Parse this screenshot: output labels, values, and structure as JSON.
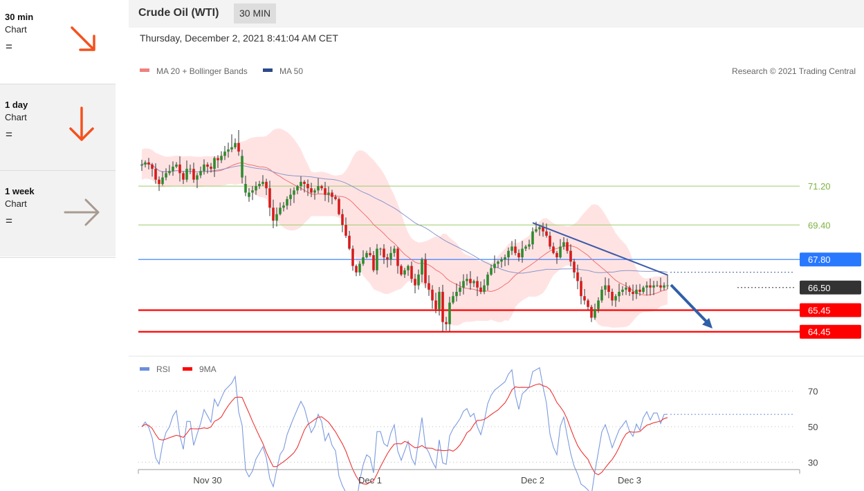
{
  "sidebar": {
    "timeframes": [
      {
        "period": "30 min",
        "kind": "Chart",
        "status": "=",
        "direction": "down-right",
        "color": "#f4511e"
      },
      {
        "period": "1 day",
        "kind": "Chart",
        "status": "=",
        "direction": "down",
        "color": "#f4511e"
      },
      {
        "period": "1 week",
        "kind": "Chart",
        "status": "=",
        "direction": "right",
        "color": "#a89a90"
      }
    ]
  },
  "header": {
    "title": "Crude Oil (WTI)",
    "interval": "30 MIN",
    "timestamp": "Thursday, December 2, 2021 8:41:04 AM CET"
  },
  "chart_data": [
    {
      "type": "candlestick",
      "legend": [
        {
          "name": "MA 20 + Bollinger Bands",
          "color": "#f08080"
        },
        {
          "name": "MA 50",
          "color": "#2d4a8a"
        }
      ],
      "credit": "Research © 2021 Trading Central",
      "ylim": [
        63.8,
        73.8
      ],
      "x_ticks": [
        "Nov 30",
        "Dec 1",
        "Dec 2",
        "Dec 3"
      ],
      "x_tick_index": [
        19,
        66,
        113,
        141
      ],
      "last_price": 66.62,
      "levels": [
        {
          "value": 71.2,
          "label": "71.20",
          "style": "thin",
          "color": "#9ccc65"
        },
        {
          "value": 69.4,
          "label": "69.40",
          "style": "thin",
          "color": "#9ccc65"
        },
        {
          "value": 67.8,
          "label": "67.80",
          "style": "badge",
          "color": "#2979ff"
        },
        {
          "value": 66.5,
          "label": "66.50",
          "style": "badge",
          "color": "#333333"
        },
        {
          "value": 65.45,
          "label": "65.45",
          "style": "badge",
          "color": "#ff0000"
        },
        {
          "value": 64.45,
          "label": "64.45",
          "style": "badge",
          "color": "#ff0000"
        }
      ],
      "trendline": [
        [
          113,
          69.5
        ],
        [
          152,
          67.08
        ]
      ],
      "forecast_arrow": [
        [
          153,
          66.62
        ],
        [
          165,
          64.6
        ]
      ],
      "closes": [
        72.2,
        72.3,
        72.2,
        72.0,
        71.5,
        71.3,
        71.6,
        71.8,
        71.9,
        72.1,
        72.2,
        71.8,
        71.5,
        72.0,
        72.0,
        71.5,
        71.7,
        71.9,
        72.2,
        72.1,
        72.0,
        72.5,
        72.4,
        72.6,
        72.8,
        72.9,
        73.0,
        73.2,
        72.8,
        72.6,
        71.3,
        70.9,
        71.0,
        71.2,
        71.3,
        71.4,
        71.1,
        70.2,
        69.6,
        69.9,
        70.2,
        70.3,
        70.6,
        70.8,
        71.0,
        71.2,
        71.4,
        71.3,
        71.1,
        70.9,
        71.0,
        71.2,
        71.1,
        70.8,
        70.9,
        70.7,
        70.6,
        69.9,
        69.4,
        68.9,
        68.3,
        67.5,
        67.2,
        67.6,
        67.9,
        68.1,
        68.0,
        67.3,
        68.3,
        68.3,
        67.9,
        67.8,
        68.1,
        68.3,
        67.5,
        67.1,
        67.3,
        67.5,
        66.9,
        66.6,
        67.1,
        67.8,
        66.7,
        66.4,
        65.9,
        65.5,
        66.3,
        64.9,
        64.8,
        65.8,
        66.1,
        66.3,
        66.5,
        66.8,
        66.9,
        66.7,
        66.8,
        66.5,
        66.3,
        66.6,
        67.1,
        67.4,
        67.6,
        67.7,
        67.8,
        67.9,
        68.2,
        68.4,
        68.1,
        67.9,
        68.3,
        68.4,
        68.5,
        69.1,
        69.2,
        69.3,
        69.1,
        68.9,
        68.4,
        68.1,
        67.9,
        68.4,
        68.6,
        68.2,
        67.7,
        67.2,
        66.8,
        66.1,
        65.9,
        65.6,
        65.1,
        65.5,
        65.9,
        66.4,
        66.6,
        66.3,
        65.9,
        66.1,
        66.3,
        66.4,
        66.5,
        66.3,
        66.2,
        66.4,
        66.3,
        66.5,
        66.6,
        66.5,
        66.6,
        66.6,
        66.5,
        66.6,
        66.6
      ],
      "gaps": [
        [
          29,
          71.6
        ],
        [
          30,
          70.9
        ],
        [
          31,
          70.7
        ]
      ]
    },
    {
      "type": "line",
      "legend": [
        {
          "name": "RSI",
          "color": "#6b8fdc"
        },
        {
          "name": "9MA",
          "color": "#ff0000"
        }
      ],
      "ylim": [
        20,
        80
      ],
      "y_ticks": [
        70,
        50,
        30
      ]
    }
  ]
}
